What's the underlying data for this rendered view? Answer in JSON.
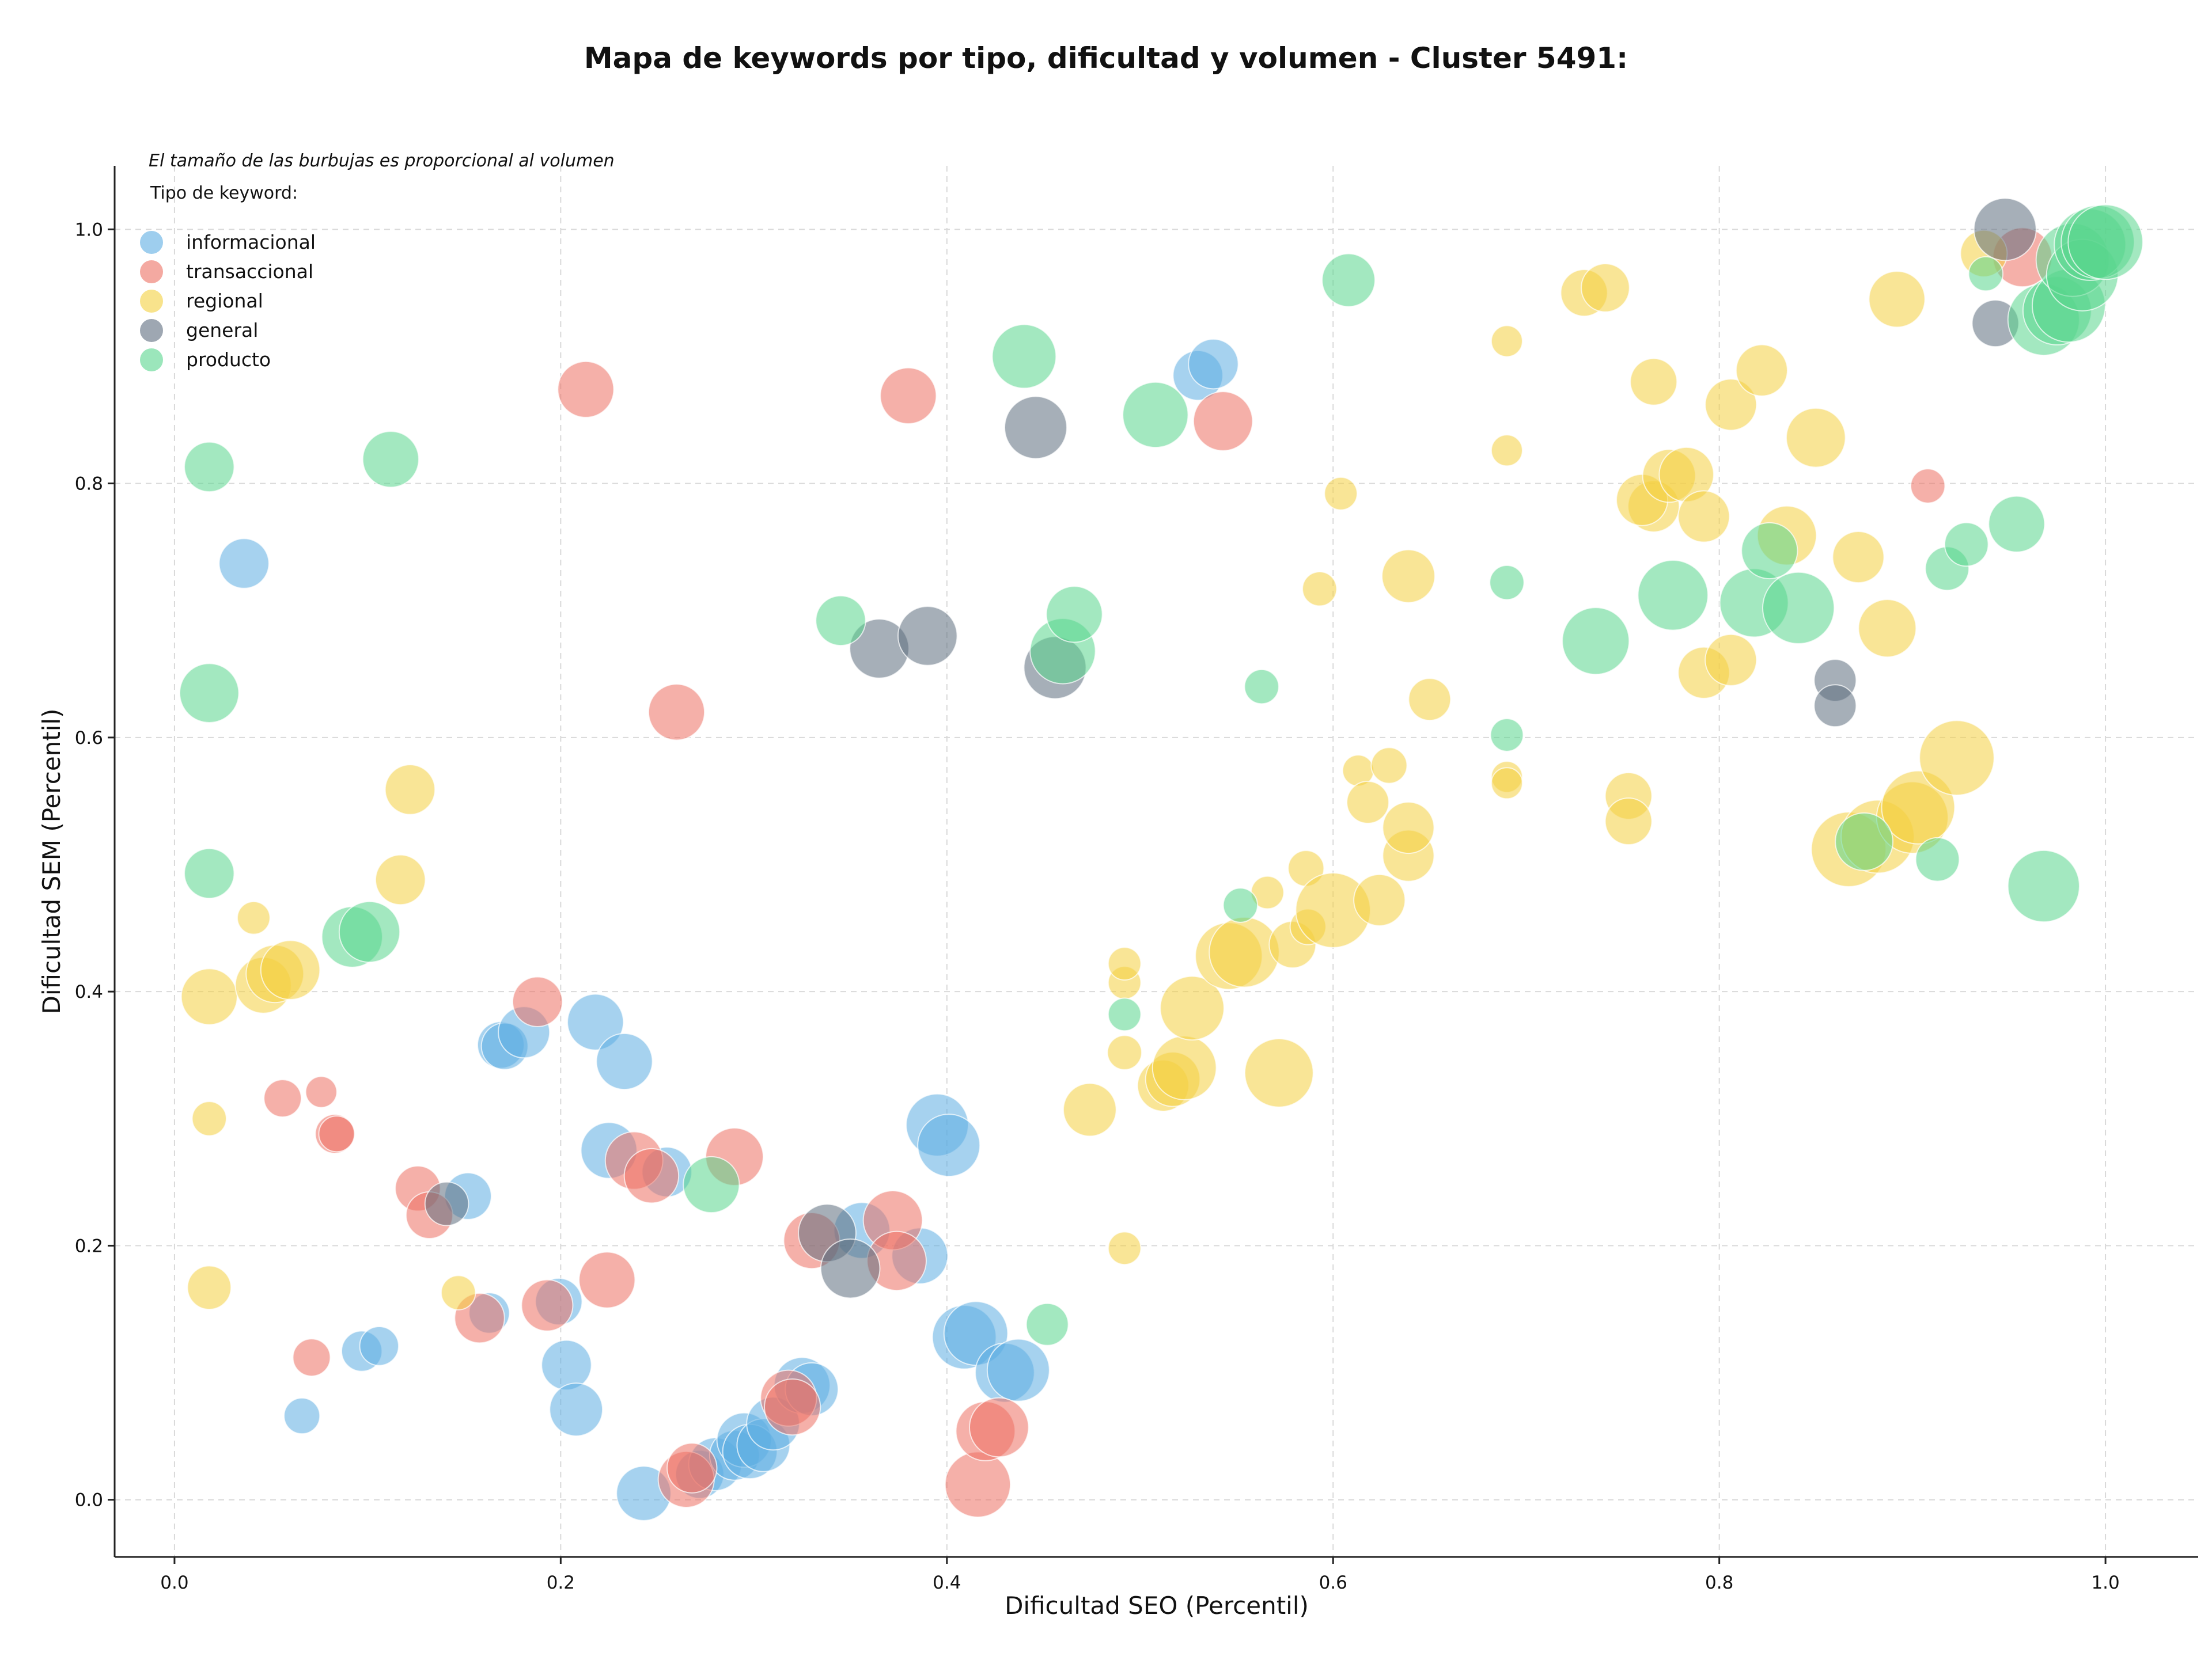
{
  "colors": {
    "informacional": "#5DADE2",
    "transaccional": "#EC7063",
    "regional": "#F4D03F",
    "general": "#5D6D7E",
    "producto": "#58D68D"
  },
  "chart_data": {
    "type": "scatter",
    "title": "Mapa de keywords por tipo, dificultad y volumen - Cluster 5491:",
    "xlabel": "Dificultad SEO (Percentil)",
    "ylabel": "Dificultad SEM (Percentil)",
    "xlim": [
      -0.031,
      1.048
    ],
    "ylim": [
      -0.045,
      1.05
    ],
    "xticks": [
      "0.0",
      "0.2",
      "0.4",
      "0.6",
      "0.8",
      "1.0"
    ],
    "yticks": [
      "0.0",
      "0.2",
      "0.4",
      "0.6",
      "0.8",
      "1.0"
    ],
    "grid": true,
    "legend": {
      "placement": "top-left",
      "note": "El tamaño de las burbujas es proporcional al volumen",
      "title": "Tipo de keyword:"
    },
    "series": [
      {
        "name": "informacional",
        "points": [
          [
            0.036,
            0.737,
            3.2
          ],
          [
            0.066,
            0.066,
            2.3
          ],
          [
            0.097,
            0.117,
            2.6
          ],
          [
            0.106,
            0.121,
            2.5
          ],
          [
            0.152,
            0.239,
            3.0
          ],
          [
            0.163,
            0.147,
            2.6
          ],
          [
            0.169,
            0.358,
            3.0
          ],
          [
            0.171,
            0.357,
            3.0
          ],
          [
            0.181,
            0.368,
            3.3
          ],
          [
            0.199,
            0.156,
            3.0
          ],
          [
            0.203,
            0.106,
            3.2
          ],
          [
            0.208,
            0.071,
            3.4
          ],
          [
            0.218,
            0.376,
            3.6
          ],
          [
            0.233,
            0.345,
            3.6
          ],
          [
            0.225,
            0.275,
            3.6
          ],
          [
            0.255,
            0.258,
            3.2
          ],
          [
            0.243,
            0.005,
            3.5
          ],
          [
            0.272,
            0.02,
            3.1
          ],
          [
            0.28,
            0.028,
            3.4
          ],
          [
            0.29,
            0.035,
            3.2
          ],
          [
            0.295,
            0.047,
            3.5
          ],
          [
            0.298,
            0.038,
            3.5
          ],
          [
            0.305,
            0.043,
            3.4
          ],
          [
            0.31,
            0.06,
            3.4
          ],
          [
            0.325,
            0.09,
            3.6
          ],
          [
            0.33,
            0.087,
            3.4
          ],
          [
            0.356,
            0.212,
            3.6
          ],
          [
            0.386,
            0.192,
            3.6
          ],
          [
            0.395,
            0.295,
            4.0
          ],
          [
            0.401,
            0.279,
            4.0
          ],
          [
            0.409,
            0.128,
            4.1
          ],
          [
            0.415,
            0.131,
            4.1
          ],
          [
            0.43,
            0.1,
            3.8
          ],
          [
            0.437,
            0.102,
            4.0
          ],
          [
            0.53,
            0.885,
            3.2
          ],
          [
            0.538,
            0.894,
            3.2
          ]
        ]
      },
      {
        "name": "transaccional",
        "points": [
          [
            0.056,
            0.316,
            2.4
          ],
          [
            0.071,
            0.112,
            2.4
          ],
          [
            0.076,
            0.321,
            2.0
          ],
          [
            0.083,
            0.288,
            2.5
          ],
          [
            0.084,
            0.288,
            2.3
          ],
          [
            0.126,
            0.245,
            2.9
          ],
          [
            0.132,
            0.224,
            3.0
          ],
          [
            0.158,
            0.143,
            3.2
          ],
          [
            0.188,
            0.392,
            3.2
          ],
          [
            0.193,
            0.153,
            3.3
          ],
          [
            0.213,
            0.874,
            3.6
          ],
          [
            0.224,
            0.173,
            3.6
          ],
          [
            0.238,
            0.267,
            3.7
          ],
          [
            0.247,
            0.255,
            3.5
          ],
          [
            0.26,
            0.62,
            3.6
          ],
          [
            0.265,
            0.016,
            3.6
          ],
          [
            0.268,
            0.025,
            3.2
          ],
          [
            0.29,
            0.27,
            3.7
          ],
          [
            0.318,
            0.08,
            3.6
          ],
          [
            0.32,
            0.073,
            3.6
          ],
          [
            0.33,
            0.204,
            3.6
          ],
          [
            0.372,
            0.22,
            3.8
          ],
          [
            0.374,
            0.188,
            3.8
          ],
          [
            0.38,
            0.869,
            3.6
          ],
          [
            0.416,
            0.012,
            4.2
          ],
          [
            0.42,
            0.054,
            3.8
          ],
          [
            0.427,
            0.057,
            3.8
          ],
          [
            0.543,
            0.849,
            3.8
          ],
          [
            0.908,
            0.798,
            2.2
          ],
          [
            0.957,
            0.978,
            3.8
          ]
        ]
      },
      {
        "name": "regional",
        "points": [
          [
            0.018,
            0.167,
            2.8
          ],
          [
            0.018,
            0.3,
            2.2
          ],
          [
            0.018,
            0.396,
            3.6
          ],
          [
            0.041,
            0.458,
            2.1
          ],
          [
            0.046,
            0.405,
            3.6
          ],
          [
            0.052,
            0.414,
            3.7
          ],
          [
            0.06,
            0.417,
            3.8
          ],
          [
            0.117,
            0.488,
            3.2
          ],
          [
            0.122,
            0.559,
            3.2
          ],
          [
            0.147,
            0.163,
            2.2
          ],
          [
            0.474,
            0.307,
            3.4
          ],
          [
            0.492,
            0.198,
            2.1
          ],
          [
            0.492,
            0.352,
            2.2
          ],
          [
            0.492,
            0.407,
            2.1
          ],
          [
            0.492,
            0.422,
            2.1
          ],
          [
            0.512,
            0.326,
            3.3
          ],
          [
            0.517,
            0.331,
            3.5
          ],
          [
            0.523,
            0.34,
            4.1
          ],
          [
            0.527,
            0.387,
            4.1
          ],
          [
            0.546,
            0.428,
            4.3
          ],
          [
            0.554,
            0.431,
            4.5
          ],
          [
            0.566,
            0.478,
            2.1
          ],
          [
            0.572,
            0.336,
            4.4
          ],
          [
            0.579,
            0.437,
            3.0
          ],
          [
            0.586,
            0.497,
            2.3
          ],
          [
            0.587,
            0.451,
            2.3
          ],
          [
            0.593,
            0.717,
            2.2
          ],
          [
            0.6,
            0.464,
            4.8
          ],
          [
            0.604,
            0.792,
            2.1
          ],
          [
            0.613,
            0.574,
            2.0
          ],
          [
            0.618,
            0.549,
            2.7
          ],
          [
            0.624,
            0.472,
            3.3
          ],
          [
            0.629,
            0.578,
            2.3
          ],
          [
            0.639,
            0.727,
            3.4
          ],
          [
            0.639,
            0.507,
            3.3
          ],
          [
            0.639,
            0.529,
            3.3
          ],
          [
            0.65,
            0.63,
            2.7
          ],
          [
            0.69,
            0.912,
            2.0
          ],
          [
            0.69,
            0.826,
            2.0
          ],
          [
            0.69,
            0.569,
            2.0
          ],
          [
            0.69,
            0.564,
            2.0
          ],
          [
            0.73,
            0.95,
            3.0
          ],
          [
            0.741,
            0.954,
            3.1
          ],
          [
            0.753,
            0.554,
            3.0
          ],
          [
            0.753,
            0.534,
            3.0
          ],
          [
            0.766,
            0.782,
            3.3
          ],
          [
            0.766,
            0.88,
            3.0
          ],
          [
            0.76,
            0.787,
            3.3
          ],
          [
            0.774,
            0.806,
            3.4
          ],
          [
            0.783,
            0.807,
            3.5
          ],
          [
            0.792,
            0.774,
            3.3
          ],
          [
            0.792,
            0.651,
            3.3
          ],
          [
            0.806,
            0.862,
            3.3
          ],
          [
            0.806,
            0.661,
            3.3
          ],
          [
            0.822,
            0.889,
            3.3
          ],
          [
            0.835,
            0.759,
            3.8
          ],
          [
            0.85,
            0.836,
            3.8
          ],
          [
            0.872,
            0.742,
            3.3
          ],
          [
            0.887,
            0.686,
            3.7
          ],
          [
            0.892,
            0.945,
            3.6
          ],
          [
            0.867,
            0.512,
            4.8
          ],
          [
            0.882,
            0.522,
            4.7
          ],
          [
            0.9,
            0.537,
            4.6
          ],
          [
            0.903,
            0.545,
            4.7
          ],
          [
            0.923,
            0.584,
            4.8
          ],
          [
            0.937,
            0.981,
            3.0
          ]
        ]
      },
      {
        "name": "general",
        "points": [
          [
            0.141,
            0.233,
            2.8
          ],
          [
            0.338,
            0.21,
            3.7
          ],
          [
            0.35,
            0.182,
            3.8
          ],
          [
            0.365,
            0.67,
            3.8
          ],
          [
            0.39,
            0.68,
            3.8
          ],
          [
            0.446,
            0.844,
            4.0
          ],
          [
            0.456,
            0.655,
            4.0
          ],
          [
            0.86,
            0.645,
            2.7
          ],
          [
            0.86,
            0.625,
            2.7
          ],
          [
            0.943,
            0.926,
            3.0
          ],
          [
            0.948,
            1.0,
            4.0
          ]
        ]
      },
      {
        "name": "producto",
        "points": [
          [
            0.018,
            0.813,
            3.2
          ],
          [
            0.018,
            0.635,
            3.8
          ],
          [
            0.018,
            0.493,
            3.2
          ],
          [
            0.092,
            0.443,
            3.9
          ],
          [
            0.101,
            0.447,
            3.9
          ],
          [
            0.112,
            0.819,
            3.6
          ],
          [
            0.278,
            0.248,
            3.6
          ],
          [
            0.345,
            0.692,
            3.2
          ],
          [
            0.44,
            0.9,
            4.1
          ],
          [
            0.452,
            0.138,
            2.7
          ],
          [
            0.46,
            0.668,
            4.2
          ],
          [
            0.466,
            0.697,
            3.6
          ],
          [
            0.508,
            0.854,
            4.2
          ],
          [
            0.552,
            0.468,
            2.2
          ],
          [
            0.563,
            0.64,
            2.2
          ],
          [
            0.608,
            0.96,
            3.4
          ],
          [
            0.69,
            0.722,
            2.2
          ],
          [
            0.69,
            0.602,
            2.1
          ],
          [
            0.492,
            0.382,
            2.1
          ],
          [
            0.736,
            0.676,
            4.3
          ],
          [
            0.776,
            0.712,
            4.5
          ],
          [
            0.818,
            0.706,
            4.4
          ],
          [
            0.826,
            0.747,
            3.6
          ],
          [
            0.841,
            0.702,
            4.6
          ],
          [
            0.875,
            0.518,
            3.7
          ],
          [
            0.913,
            0.504,
            2.8
          ],
          [
            0.918,
            0.733,
            2.8
          ],
          [
            0.928,
            0.752,
            2.8
          ],
          [
            0.954,
            0.768,
            3.6
          ],
          [
            0.938,
            0.965,
            2.2
          ],
          [
            0.968,
            0.483,
            4.6
          ],
          [
            0.968,
            0.929,
            4.6
          ],
          [
            0.975,
            0.936,
            4.4
          ],
          [
            0.981,
            0.94,
            4.7
          ],
          [
            0.983,
            0.976,
            4.7
          ],
          [
            0.988,
            0.964,
            4.6
          ],
          [
            0.992,
            0.988,
            4.6
          ],
          [
            0.996,
            0.99,
            4.7
          ],
          [
            1.0,
            0.99,
            4.8
          ]
        ]
      }
    ]
  }
}
